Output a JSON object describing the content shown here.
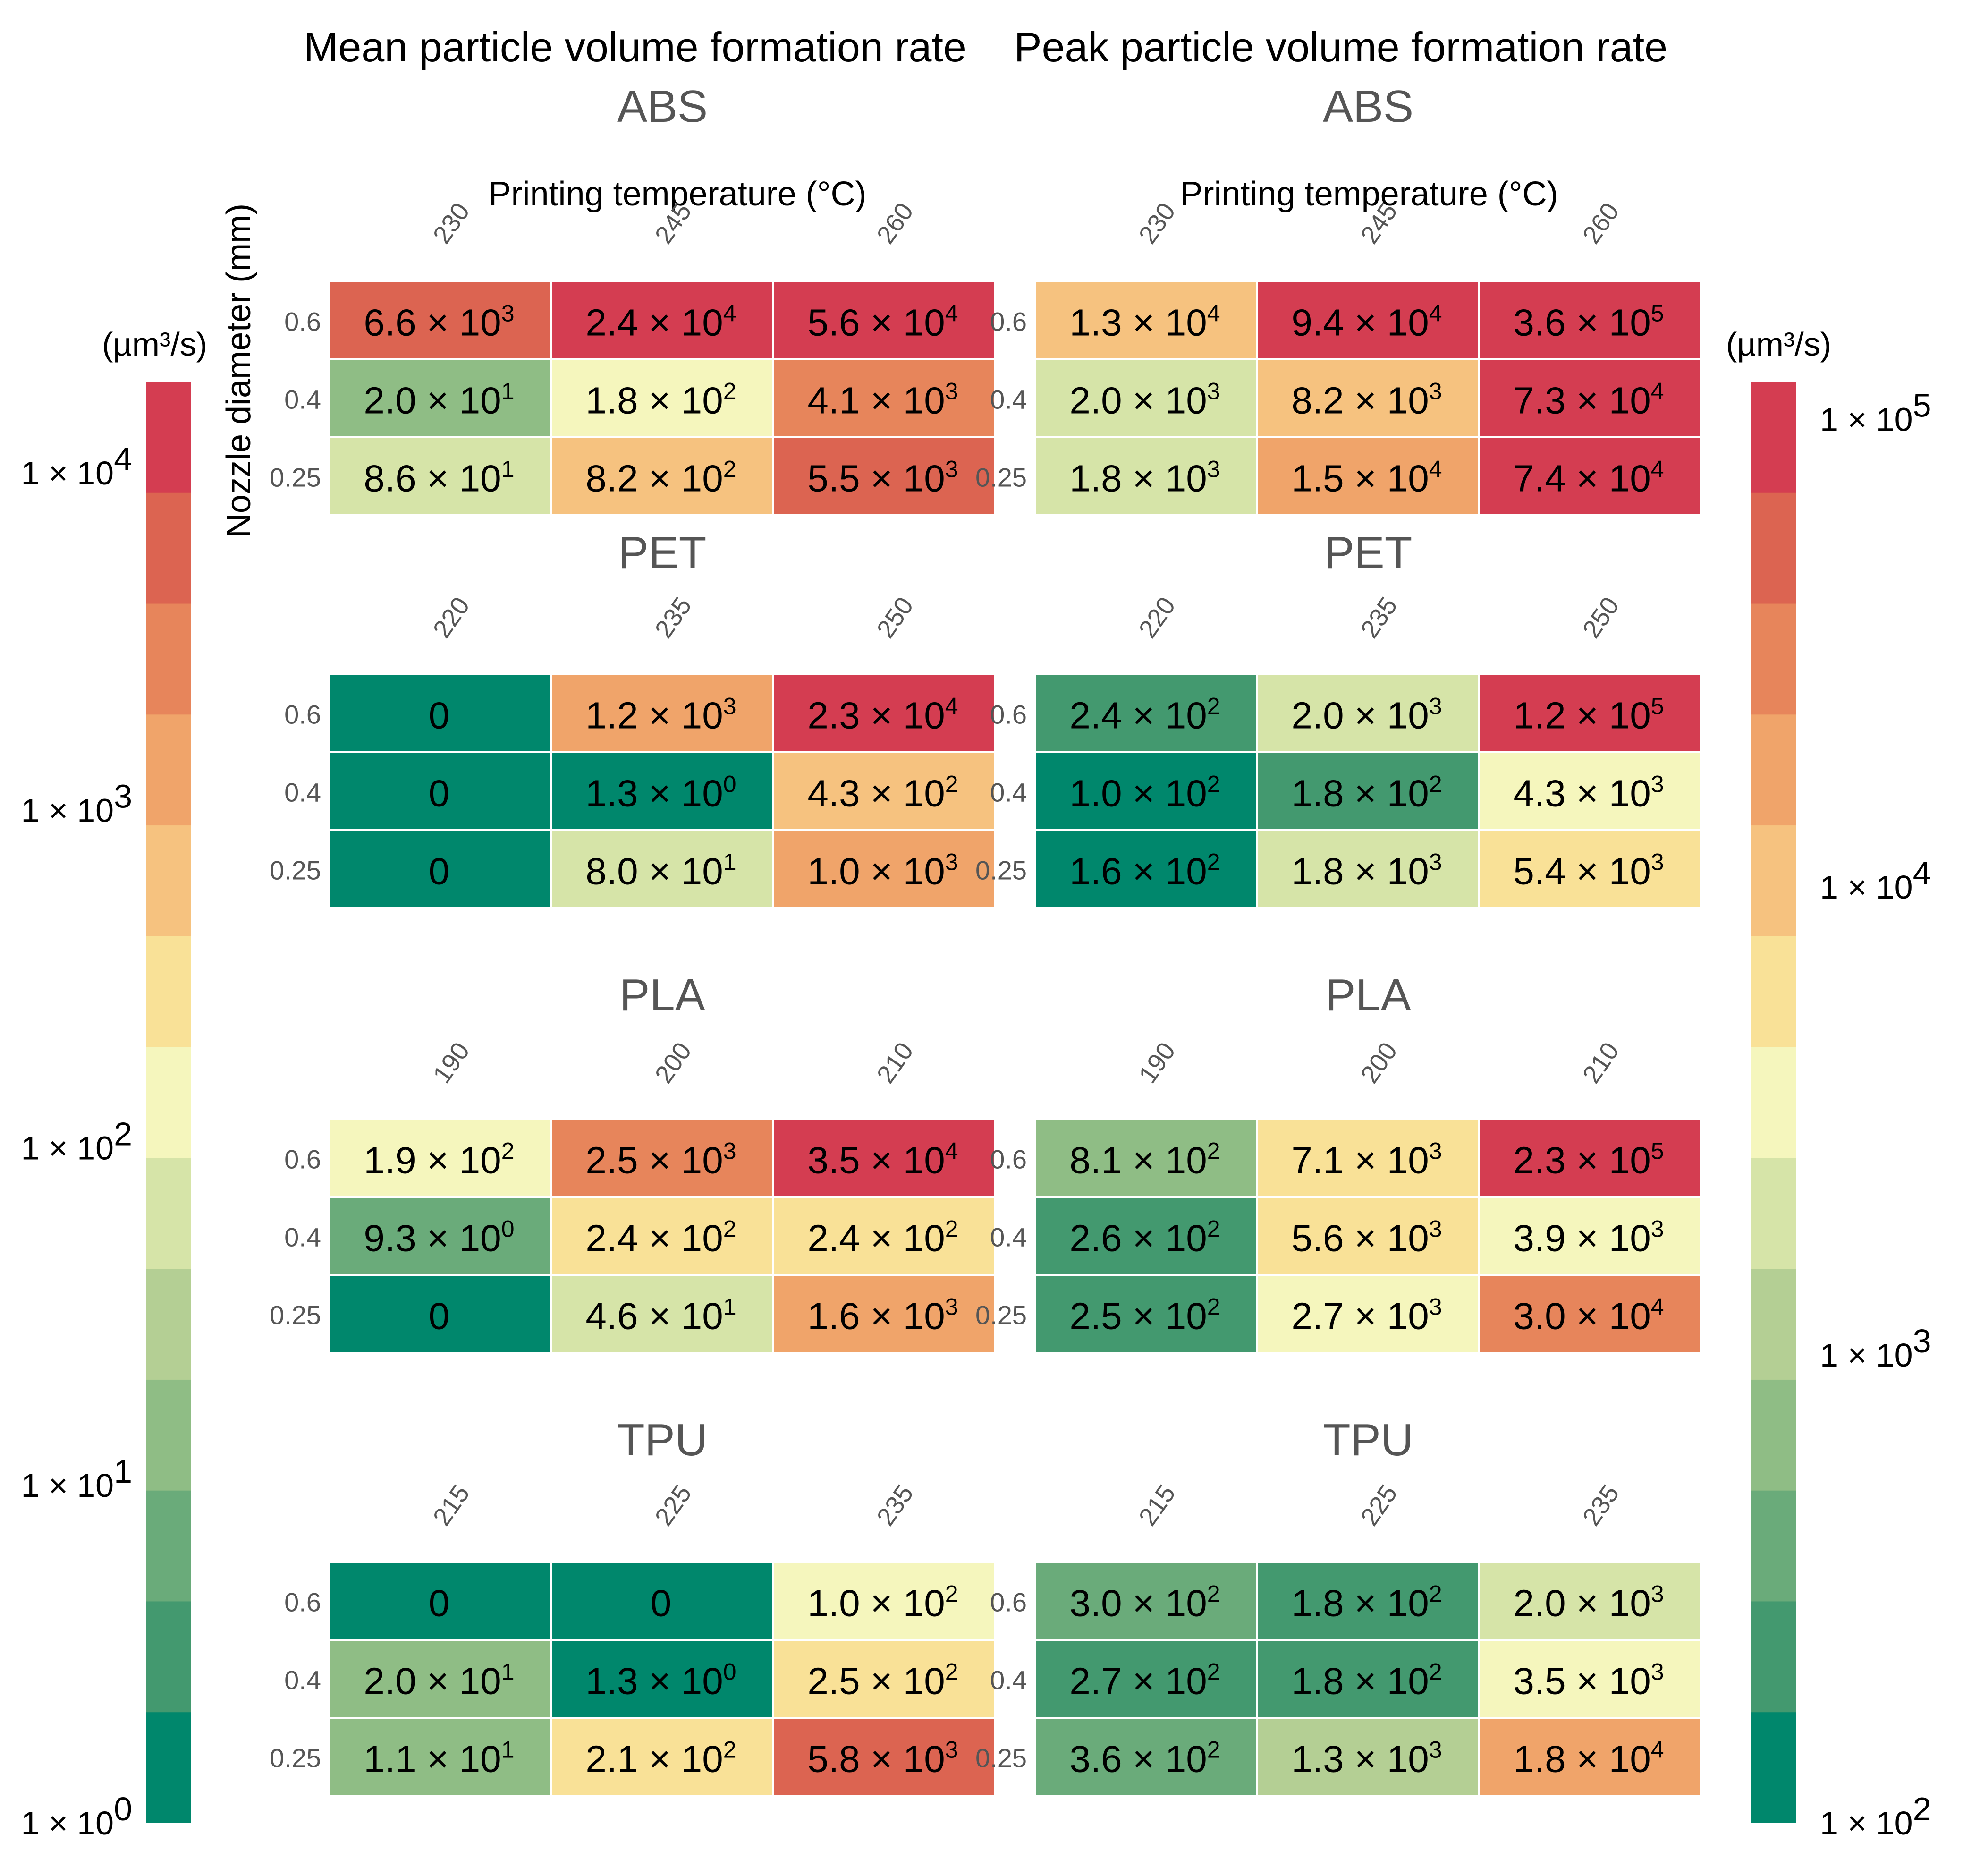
{
  "palette": [
    "#00876c",
    "#43996f",
    "#6aab7a",
    "#8fbd85",
    "#b4cf94",
    "#d6e4a8",
    "#f5f6bd",
    "#f9e197",
    "#f6c27f",
    "#f0a46a",
    "#e7855b",
    "#dc6451",
    "#d43d51"
  ],
  "chart_data": [
    {
      "type": "heatmap",
      "panel": "mean",
      "title": "Mean particle volume formation rate",
      "xlabel": "Printing temperature (°C)",
      "ylabel": "Nozzle diameter (mm)",
      "rows": [
        "0.6",
        "0.4",
        "0.25"
      ],
      "colorbar": {
        "unit": "(µm³/s)",
        "log_min": 0,
        "log_max": 4.27,
        "ticks": [
          {
            "mantissa": "1 × 10",
            "exp": "0",
            "log": 0
          },
          {
            "mantissa": "1 × 10",
            "exp": "1",
            "log": 1
          },
          {
            "mantissa": "1 × 10",
            "exp": "2",
            "log": 2
          },
          {
            "mantissa": "1 × 10",
            "exp": "3",
            "log": 3
          },
          {
            "mantissa": "1 × 10",
            "exp": "4",
            "log": 4
          }
        ]
      },
      "materials": [
        {
          "name": "ABS",
          "temps": [
            "230",
            "245",
            "260"
          ],
          "cells": [
            [
              {
                "m": "6.6",
                "e": "3",
                "v": 6600
              },
              {
                "m": "2.4",
                "e": "4",
                "v": 24000
              },
              {
                "m": "5.6",
                "e": "4",
                "v": 56000
              }
            ],
            [
              {
                "m": "2.0",
                "e": "1",
                "v": 20
              },
              {
                "m": "1.8",
                "e": "2",
                "v": 180
              },
              {
                "m": "4.1",
                "e": "3",
                "v": 4100
              }
            ],
            [
              {
                "m": "8.6",
                "e": "1",
                "v": 86
              },
              {
                "m": "8.2",
                "e": "2",
                "v": 820
              },
              {
                "m": "5.5",
                "e": "3",
                "v": 5500
              }
            ]
          ]
        },
        {
          "name": "PET",
          "temps": [
            "220",
            "235",
            "250"
          ],
          "cells": [
            [
              {
                "m": "0",
                "e": "",
                "v": 0
              },
              {
                "m": "1.2",
                "e": "3",
                "v": 1200
              },
              {
                "m": "2.3",
                "e": "4",
                "v": 23000
              }
            ],
            [
              {
                "m": "0",
                "e": "",
                "v": 0
              },
              {
                "m": "1.3",
                "e": "0",
                "v": 1.3
              },
              {
                "m": "4.3",
                "e": "2",
                "v": 430
              }
            ],
            [
              {
                "m": "0",
                "e": "",
                "v": 0
              },
              {
                "m": "8.0",
                "e": "1",
                "v": 80
              },
              {
                "m": "1.0",
                "e": "3",
                "v": 1000
              }
            ]
          ]
        },
        {
          "name": "PLA",
          "temps": [
            "190",
            "200",
            "210"
          ],
          "cells": [
            [
              {
                "m": "1.9",
                "e": "2",
                "v": 190
              },
              {
                "m": "2.5",
                "e": "3",
                "v": 2500
              },
              {
                "m": "3.5",
                "e": "4",
                "v": 35000
              }
            ],
            [
              {
                "m": "9.3",
                "e": "0",
                "v": 9.3
              },
              {
                "m": "2.4",
                "e": "2",
                "v": 240
              },
              {
                "m": "2.4",
                "e": "2",
                "v": 240
              }
            ],
            [
              {
                "m": "0",
                "e": "",
                "v": 0
              },
              {
                "m": "4.6",
                "e": "1",
                "v": 46
              },
              {
                "m": "1.6",
                "e": "3",
                "v": 1600
              }
            ]
          ]
        },
        {
          "name": "TPU",
          "temps": [
            "215",
            "225",
            "235"
          ],
          "cells": [
            [
              {
                "m": "0",
                "e": "",
                "v": 0
              },
              {
                "m": "0",
                "e": "",
                "v": 0
              },
              {
                "m": "1.0",
                "e": "2",
                "v": 100
              }
            ],
            [
              {
                "m": "2.0",
                "e": "1",
                "v": 20
              },
              {
                "m": "1.3",
                "e": "0",
                "v": 1.3
              },
              {
                "m": "2.5",
                "e": "2",
                "v": 250
              }
            ],
            [
              {
                "m": "1.1",
                "e": "1",
                "v": 11
              },
              {
                "m": "2.1",
                "e": "2",
                "v": 210
              },
              {
                "m": "5.8",
                "e": "3",
                "v": 5800
              }
            ]
          ]
        }
      ]
    },
    {
      "type": "heatmap",
      "panel": "peak",
      "title": "Peak particle volume formation rate",
      "xlabel": "Printing temperature (°C)",
      "rows": [
        "0.6",
        "0.4",
        "0.25"
      ],
      "colorbar": {
        "unit": "(µm³/s)",
        "log_min": 2,
        "log_max": 5.08,
        "ticks": [
          {
            "mantissa": "1 × 10",
            "exp": "2",
            "log": 2
          },
          {
            "mantissa": "1 × 10",
            "exp": "3",
            "log": 3
          },
          {
            "mantissa": "1 × 10",
            "exp": "4",
            "log": 4
          },
          {
            "mantissa": "1 × 10",
            "exp": "5",
            "log": 5
          }
        ]
      },
      "materials": [
        {
          "name": "ABS",
          "temps": [
            "230",
            "245",
            "260"
          ],
          "cells": [
            [
              {
                "m": "1.3",
                "e": "4",
                "v": 13000
              },
              {
                "m": "9.4",
                "e": "4",
                "v": 94000
              },
              {
                "m": "3.6",
                "e": "5",
                "v": 360000
              }
            ],
            [
              {
                "m": "2.0",
                "e": "3",
                "v": 2000
              },
              {
                "m": "8.2",
                "e": "3",
                "v": 8200
              },
              {
                "m": "7.3",
                "e": "4",
                "v": 73000
              }
            ],
            [
              {
                "m": "1.8",
                "e": "3",
                "v": 1800
              },
              {
                "m": "1.5",
                "e": "4",
                "v": 15000
              },
              {
                "m": "7.4",
                "e": "4",
                "v": 74000
              }
            ]
          ]
        },
        {
          "name": "PET",
          "temps": [
            "220",
            "235",
            "250"
          ],
          "cells": [
            [
              {
                "m": "2.4",
                "e": "2",
                "v": 240
              },
              {
                "m": "2.0",
                "e": "3",
                "v": 2000
              },
              {
                "m": "1.2",
                "e": "5",
                "v": 120000
              }
            ],
            [
              {
                "m": "1.0",
                "e": "2",
                "v": 100
              },
              {
                "m": "1.8",
                "e": "2",
                "v": 180
              },
              {
                "m": "4.3",
                "e": "3",
                "v": 4300
              }
            ],
            [
              {
                "m": "1.6",
                "e": "2",
                "v": 160
              },
              {
                "m": "1.8",
                "e": "3",
                "v": 1800
              },
              {
                "m": "5.4",
                "e": "3",
                "v": 5400
              }
            ]
          ]
        },
        {
          "name": "PLA",
          "temps": [
            "190",
            "200",
            "210"
          ],
          "cells": [
            [
              {
                "m": "8.1",
                "e": "2",
                "v": 810
              },
              {
                "m": "7.1",
                "e": "3",
                "v": 7100
              },
              {
                "m": "2.3",
                "e": "5",
                "v": 230000
              }
            ],
            [
              {
                "m": "2.6",
                "e": "2",
                "v": 260
              },
              {
                "m": "5.6",
                "e": "3",
                "v": 5600
              },
              {
                "m": "3.9",
                "e": "3",
                "v": 3900
              }
            ],
            [
              {
                "m": "2.5",
                "e": "2",
                "v": 250
              },
              {
                "m": "2.7",
                "e": "3",
                "v": 2700
              },
              {
                "m": "3.0",
                "e": "4",
                "v": 30000
              }
            ]
          ]
        },
        {
          "name": "TPU",
          "temps": [
            "215",
            "225",
            "235"
          ],
          "cells": [
            [
              {
                "m": "3.0",
                "e": "2",
                "v": 300
              },
              {
                "m": "1.8",
                "e": "2",
                "v": 180
              },
              {
                "m": "2.0",
                "e": "3",
                "v": 2000
              }
            ],
            [
              {
                "m": "2.7",
                "e": "2",
                "v": 270
              },
              {
                "m": "1.8",
                "e": "2",
                "v": 180
              },
              {
                "m": "3.5",
                "e": "3",
                "v": 3500
              }
            ],
            [
              {
                "m": "3.6",
                "e": "2",
                "v": 360
              },
              {
                "m": "1.3",
                "e": "3",
                "v": 1300
              },
              {
                "m": "1.8",
                "e": "4",
                "v": 18000
              }
            ]
          ]
        }
      ]
    }
  ]
}
